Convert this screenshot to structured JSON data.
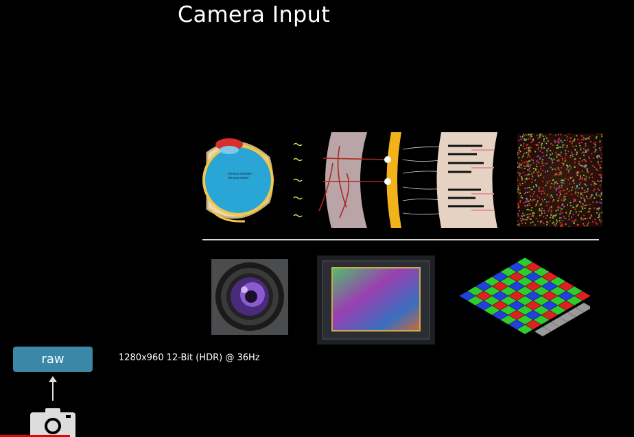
{
  "slide": {
    "title": "Camera Input",
    "eye_labels": [
      "vitreous chamber",
      "vitreous humor"
    ]
  },
  "pipeline": {
    "raw_label": "raw",
    "spec_text": "1280x960 12-Bit (HDR) @ 36Hz"
  },
  "icons": {
    "camera": "camera-icon",
    "arrow": "arrow-up-icon"
  },
  "colors": {
    "raw_button": "#3a87a8",
    "progress": "#ee0000"
  },
  "video": {
    "progress_fraction": 0.11
  }
}
